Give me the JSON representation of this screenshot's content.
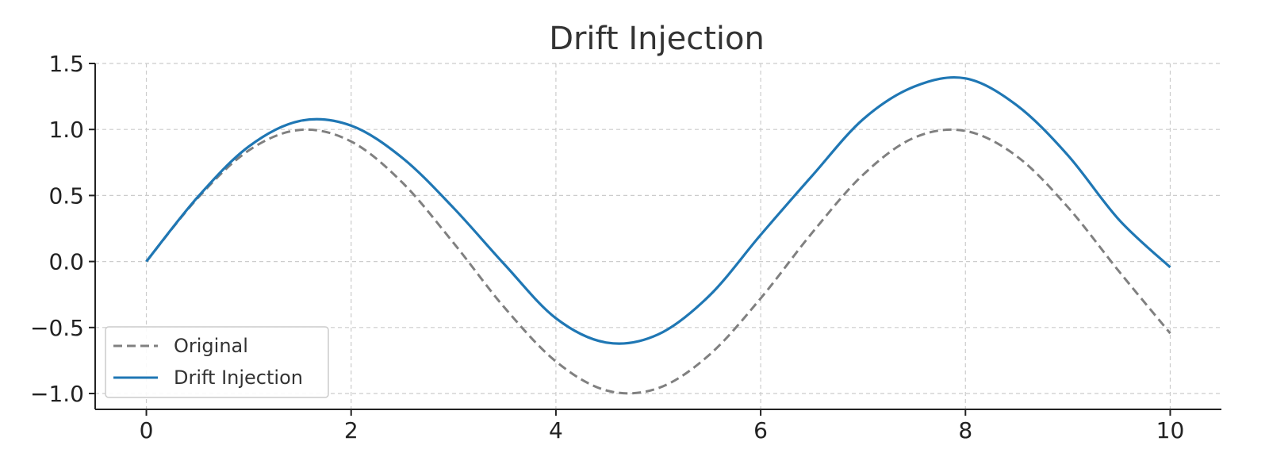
{
  "chart_data": {
    "type": "line",
    "title": "Drift Injection",
    "xlabel": "",
    "ylabel": "",
    "xlim": [
      -0.5,
      10.5
    ],
    "ylim": [
      -1.12,
      1.5
    ],
    "xticks": [
      0,
      2,
      4,
      6,
      8,
      10
    ],
    "xtick_labels": [
      "0",
      "2",
      "4",
      "6",
      "8",
      "10"
    ],
    "yticks": [
      -1.0,
      -0.5,
      0.0,
      0.5,
      1.0,
      1.5
    ],
    "ytick_labels": [
      "−1.0",
      "−0.5",
      "0.0",
      "0.5",
      "1.0",
      "1.5"
    ],
    "grid": true,
    "legend_position": "lower-left",
    "x": [
      0,
      0.5,
      1,
      1.5,
      2,
      2.5,
      3,
      3.5,
      4,
      4.5,
      5,
      5.5,
      6,
      6.5,
      7,
      7.5,
      8,
      8.5,
      9,
      9.5,
      10
    ],
    "series": [
      {
        "name": "Original",
        "color": "#808080",
        "style": "dashed",
        "values": [
          0.0,
          0.479,
          0.841,
          0.997,
          0.909,
          0.598,
          0.141,
          -0.351,
          -0.757,
          -0.978,
          -0.959,
          -0.706,
          -0.279,
          0.215,
          0.657,
          0.938,
          0.989,
          0.798,
          0.412,
          -0.075,
          -0.544
        ]
      },
      {
        "name": "Drift Injection",
        "color": "#1f77b4",
        "style": "solid",
        "values": [
          0.0,
          0.487,
          0.871,
          1.065,
          1.029,
          0.785,
          0.406,
          -0.024,
          -0.43,
          -0.615,
          -0.552,
          -0.258,
          0.202,
          0.647,
          1.077,
          1.325,
          1.387,
          1.184,
          0.805,
          0.316,
          -0.044
        ]
      }
    ]
  }
}
